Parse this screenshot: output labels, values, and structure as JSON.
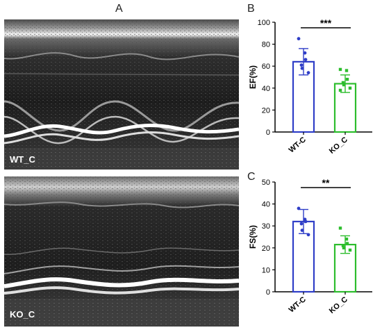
{
  "panels": {
    "A": {
      "letter": "A",
      "top_label": "WT_C",
      "bottom_label": "KO_C"
    },
    "B": {
      "letter": "B"
    },
    "C": {
      "letter": "C"
    }
  },
  "chart_data": [
    {
      "type": "bar",
      "panel": "B",
      "ylabel": "EF(%)",
      "xlabel": "",
      "ylim": [
        0,
        100
      ],
      "yticks": [
        "0",
        "20",
        "40",
        "60",
        "80",
        "100"
      ],
      "categories": [
        "WT-C",
        "KO_C"
      ],
      "values": [
        64,
        44
      ],
      "errors": [
        12,
        8
      ],
      "colors": [
        "#2f3ec7",
        "#2dbd2d"
      ],
      "points": [
        [
          85,
          72,
          66,
          61,
          58,
          54
        ],
        [
          57,
          56,
          48,
          45,
          43,
          40,
          38
        ]
      ],
      "significance": "***"
    },
    {
      "type": "bar",
      "panel": "C",
      "ylabel": "FS(%)",
      "xlabel": "",
      "ylim": [
        0,
        50
      ],
      "yticks": [
        "0",
        "10",
        "20",
        "30",
        "40",
        "50"
      ],
      "categories": [
        "WT-C",
        "KO_C"
      ],
      "values": [
        32,
        21.5
      ],
      "errors": [
        5.5,
        4
      ],
      "colors": [
        "#2f3ec7",
        "#2dbd2d"
      ],
      "points": [
        [
          38,
          33,
          32,
          31,
          28,
          26
        ],
        [
          29,
          24,
          22,
          21,
          20,
          19
        ]
      ],
      "significance": "**"
    }
  ]
}
